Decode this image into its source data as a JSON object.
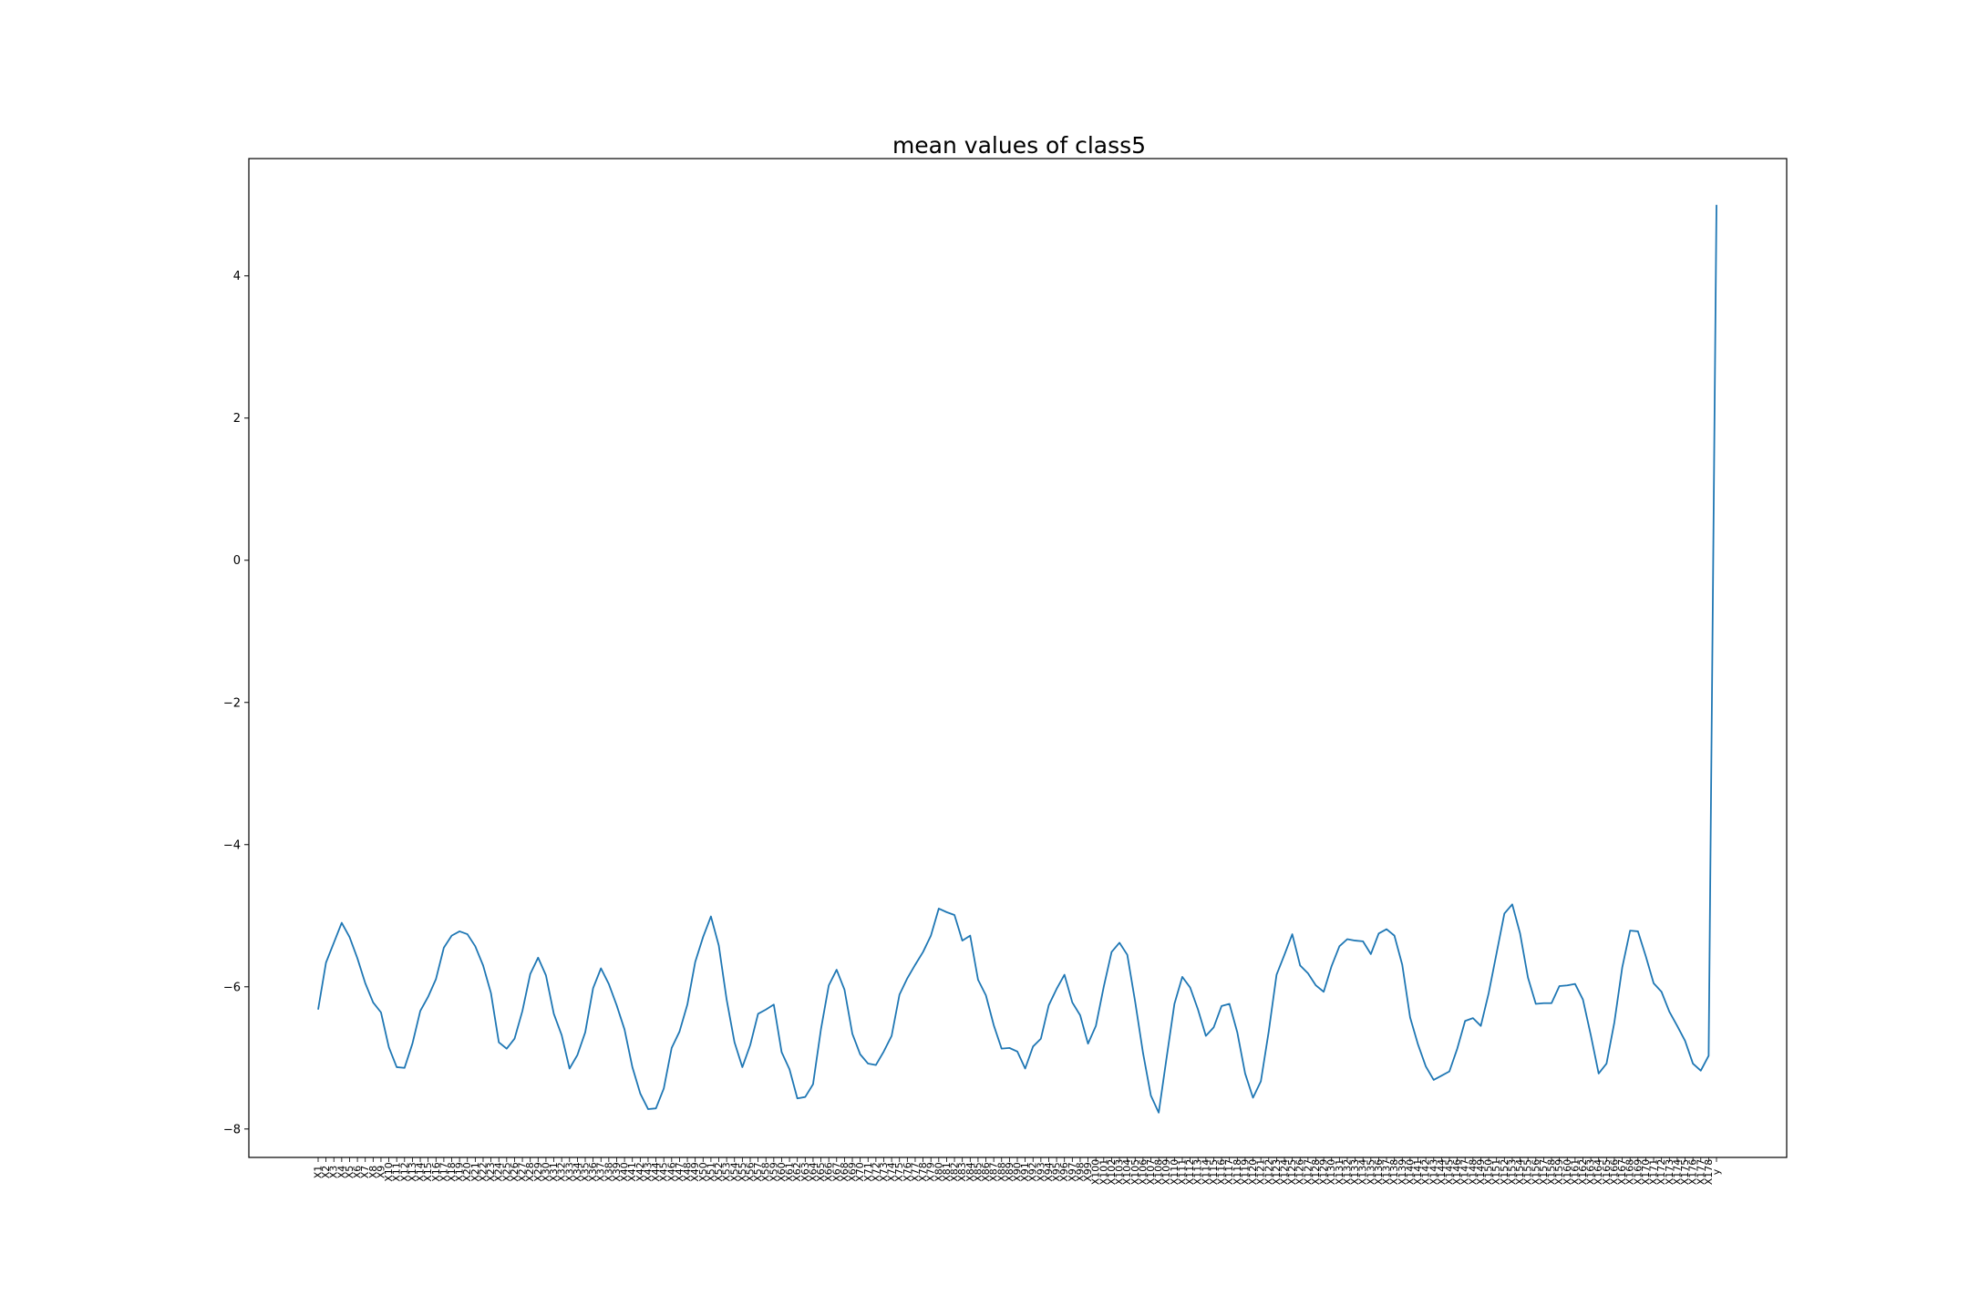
{
  "chart_data": {
    "type": "line",
    "title": "mean values of class5",
    "xlabel": "",
    "ylabel": "",
    "ylim": [
      -8.4,
      5.65
    ],
    "y_ticks": [
      "−8",
      "−6",
      "−4",
      "−2",
      "0",
      "2",
      "4"
    ],
    "y_tick_values": [
      -8,
      -6,
      -4,
      -2,
      0,
      2,
      4
    ],
    "grid": false,
    "legend": "none",
    "line_color": "#1f77b4",
    "x": [
      "X1",
      "X2",
      "X3",
      "X4",
      "X5",
      "X6",
      "X7",
      "X8",
      "X9",
      "X10",
      "X11",
      "X12",
      "X13",
      "X14",
      "X15",
      "X16",
      "X17",
      "X18",
      "X19",
      "X20",
      "X21",
      "X22",
      "X23",
      "X24",
      "X25",
      "X26",
      "X27",
      "X28",
      "X29",
      "X30",
      "X31",
      "X32",
      "X33",
      "X34",
      "X35",
      "X36",
      "X37",
      "X38",
      "X39",
      "X40",
      "X41",
      "X42",
      "X43",
      "X44",
      "X45",
      "X46",
      "X47",
      "X48",
      "X49",
      "X50",
      "X51",
      "X52",
      "X53",
      "X54",
      "X55",
      "X56",
      "X57",
      "X58",
      "X59",
      "X60",
      "X61",
      "X62",
      "X63",
      "X64",
      "X65",
      "X66",
      "X67",
      "X68",
      "X69",
      "X70",
      "X71",
      "X72",
      "X73",
      "X74",
      "X75",
      "X76",
      "X77",
      "X78",
      "X79",
      "X80",
      "X81",
      "X82",
      "X83",
      "X84",
      "X85",
      "X86",
      "X87",
      "X88",
      "X89",
      "X90",
      "X91",
      "X92",
      "X93",
      "X94",
      "X95",
      "X96",
      "X97",
      "X98",
      "X99",
      "X100",
      "X101",
      "X102",
      "X103",
      "X104",
      "X105",
      "X106",
      "X107",
      "X108",
      "X109",
      "X110",
      "X111",
      "X112",
      "X113",
      "X114",
      "X115",
      "X116",
      "X117",
      "X118",
      "X119",
      "X120",
      "X121",
      "X122",
      "X123",
      "X124",
      "X125",
      "X126",
      "X127",
      "X128",
      "X129",
      "X130",
      "X131",
      "X132",
      "X133",
      "X134",
      "X135",
      "X136",
      "X137",
      "X138",
      "X139",
      "X140",
      "X141",
      "X142",
      "X143",
      "X144",
      "X145",
      "X146",
      "X147",
      "X148",
      "X149",
      "X150",
      "X151",
      "X152",
      "X153",
      "X154",
      "X155",
      "X156",
      "X157",
      "X158",
      "X159",
      "X160",
      "X161",
      "X162",
      "X163",
      "X164",
      "X165",
      "X166",
      "X167",
      "X168",
      "X169",
      "X170",
      "X171",
      "X172",
      "X173",
      "X174",
      "X175",
      "X176",
      "X177",
      "X178",
      "y"
    ],
    "values": [
      -6.32,
      -5.66,
      -5.38,
      -5.1,
      -5.3,
      -5.6,
      -5.95,
      -6.22,
      -6.36,
      -6.85,
      -7.13,
      -7.14,
      -6.8,
      -6.34,
      -6.14,
      -5.89,
      -5.45,
      -5.28,
      -5.22,
      -5.26,
      -5.43,
      -5.7,
      -6.09,
      -6.78,
      -6.87,
      -6.73,
      -6.34,
      -5.82,
      -5.59,
      -5.84,
      -6.38,
      -6.68,
      -7.15,
      -6.96,
      -6.64,
      -6.02,
      -5.74,
      -5.96,
      -6.26,
      -6.6,
      -7.13,
      -7.5,
      -7.72,
      -7.71,
      -7.43,
      -6.86,
      -6.63,
      -6.25,
      -5.65,
      -5.3,
      -5.01,
      -5.42,
      -6.18,
      -6.78,
      -7.13,
      -6.82,
      -6.38,
      -6.32,
      -6.25,
      -6.92,
      -7.16,
      -7.57,
      -7.55,
      -7.37,
      -6.6,
      -5.98,
      -5.76,
      -6.04,
      -6.66,
      -6.95,
      -7.08,
      -7.1,
      -6.91,
      -6.69,
      -6.11,
      -5.88,
      -5.69,
      -5.51,
      -5.28,
      -4.9,
      -4.95,
      -4.99,
      -5.35,
      -5.28,
      -5.9,
      -6.12,
      -6.54,
      -6.87,
      -6.86,
      -6.91,
      -7.15,
      -6.84,
      -6.73,
      -6.26,
      -6.03,
      -5.83,
      -6.22,
      -6.4,
      -6.8,
      -6.55,
      -6.0,
      -5.51,
      -5.38,
      -5.55,
      -6.21,
      -6.93,
      -7.53,
      -7.77,
      -7.0,
      -6.24,
      -5.86,
      -6.01,
      -6.32,
      -6.69,
      -6.57,
      -6.27,
      -6.24,
      -6.64,
      -7.22,
      -7.56,
      -7.33,
      -6.63,
      -5.83,
      -5.55,
      -5.26,
      -5.7,
      -5.81,
      -5.98,
      -6.07,
      -5.71,
      -5.43,
      -5.33,
      -5.35,
      -5.36,
      -5.54,
      -5.25,
      -5.19,
      -5.28,
      -5.69,
      -6.43,
      -6.81,
      -7.12,
      -7.31,
      -7.25,
      -7.19,
      -6.87,
      -6.48,
      -6.44,
      -6.55,
      -6.09,
      -5.53,
      -4.97,
      -4.84,
      -5.25,
      -5.87,
      -6.24,
      -6.23,
      -6.23,
      -5.99,
      -5.98,
      -5.96,
      -6.18,
      -6.68,
      -7.22,
      -7.08,
      -6.5,
      -5.73,
      -5.21,
      -5.22,
      -5.57,
      -5.95,
      -6.07,
      -6.35,
      -6.55,
      -6.76,
      -7.08,
      -7.18,
      -6.97,
      5.0
    ]
  }
}
